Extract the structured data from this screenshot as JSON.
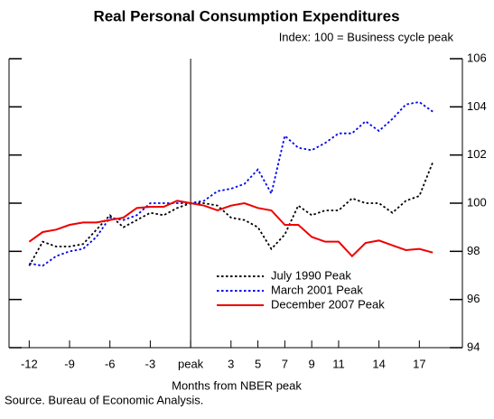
{
  "chart_data": {
    "type": "line",
    "title": "Real Personal Consumption Expenditures",
    "subtitle": "Index: 100 = Business cycle peak",
    "x_label": "Months from NBER peak",
    "source": "Source. Bureau of Economic Analysis.",
    "x": [
      -12,
      -11,
      -10,
      -9,
      -8,
      -7,
      -6,
      -5,
      -4,
      -3,
      -2,
      -1,
      0,
      1,
      2,
      3,
      4,
      5,
      6,
      7,
      8,
      9,
      10,
      11,
      12,
      13,
      14,
      15,
      16,
      17,
      18
    ],
    "series": [
      {
        "name": "July 1990 Peak",
        "color": "#000000",
        "linestyle": "dotted",
        "values": [
          97.4,
          98.4,
          98.2,
          98.2,
          98.3,
          98.9,
          99.5,
          99.0,
          99.3,
          99.6,
          99.5,
          99.8,
          100,
          100.0,
          99.9,
          99.4,
          99.3,
          99.0,
          98.1,
          98.7,
          99.9,
          99.5,
          99.7,
          99.7,
          100.2,
          100.0,
          100.0,
          99.6,
          100.1,
          100.3,
          101.7
        ]
      },
      {
        "name": "March 2001 Peak",
        "color": "#0000ee",
        "linestyle": "dotted",
        "values": [
          97.5,
          97.4,
          97.8,
          98.0,
          98.1,
          98.6,
          99.4,
          99.3,
          99.5,
          100.0,
          100.0,
          100.0,
          100,
          100.1,
          100.5,
          100.6,
          100.8,
          101.4,
          100.4,
          102.8,
          102.3,
          102.2,
          102.5,
          102.9,
          102.9,
          103.4,
          103.0,
          103.5,
          104.1,
          104.2,
          103.8
        ]
      },
      {
        "name": "December 2007 Peak",
        "color": "#ee0000",
        "linestyle": "solid",
        "values": [
          98.4,
          98.8,
          98.9,
          99.1,
          99.2,
          99.2,
          99.3,
          99.4,
          99.8,
          99.85,
          99.85,
          100.1,
          100,
          99.9,
          99.7,
          99.9,
          100.0,
          99.8,
          99.7,
          99.1,
          99.1,
          98.6,
          98.4,
          98.4,
          97.8,
          98.35,
          98.45,
          98.25,
          98.05,
          98.1,
          97.95
        ]
      }
    ],
    "xlim": [
      -13.5,
      20.2
    ],
    "xticks": [
      -12,
      -9,
      -6,
      -3,
      {
        "value": 0,
        "label": "peak"
      },
      3,
      5,
      7,
      9,
      11,
      14,
      17
    ],
    "ylim": [
      94,
      106
    ],
    "yticks": [
      94,
      96,
      98,
      100,
      102,
      104,
      106
    ],
    "vline": 0
  }
}
